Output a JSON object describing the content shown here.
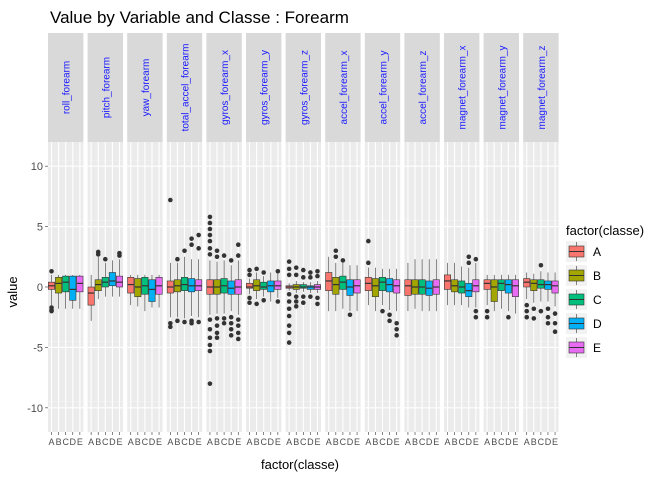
{
  "chart_data": {
    "type": "boxplot",
    "title": "Value by Variable and Classe : Forearm",
    "xlabel": "factor(classe)",
    "ylabel": "value",
    "ylim": [
      -12,
      12
    ],
    "yticks": [
      10,
      5,
      0,
      -5,
      -10
    ],
    "grid": true,
    "legend_position": "right",
    "legend": {
      "title": "factor(classe)",
      "entries": [
        {
          "name": "A",
          "color": "#F8766D"
        },
        {
          "name": "B",
          "color": "#A3A500"
        },
        {
          "name": "C",
          "color": "#00BF7D"
        },
        {
          "name": "D",
          "color": "#00B0F6"
        },
        {
          "name": "E",
          "color": "#E76BF3"
        }
      ]
    },
    "categories": [
      "A",
      "B",
      "C",
      "D",
      "E"
    ],
    "facets": [
      {
        "name": "roll_forearm",
        "boxes": [
          {
            "q1": -0.2,
            "median": 0.1,
            "q3": 0.4,
            "lo": -1.5,
            "hi": 1.0,
            "out": [
              1.3,
              -1.7,
              -1.9,
              -2.0
            ]
          },
          {
            "q1": -0.5,
            "median": 0.3,
            "q3": 0.8,
            "lo": -1.8,
            "hi": 1.0,
            "out": []
          },
          {
            "q1": -0.4,
            "median": 0.4,
            "q3": 0.9,
            "lo": -1.8,
            "hi": 1.0,
            "out": []
          },
          {
            "q1": -1.1,
            "median": -0.2,
            "q3": 0.9,
            "lo": -1.8,
            "hi": 1.0,
            "out": []
          },
          {
            "q1": -0.4,
            "median": 0.3,
            "q3": 0.9,
            "lo": -1.8,
            "hi": 1.0,
            "out": []
          }
        ]
      },
      {
        "name": "pitch_forearm",
        "boxes": [
          {
            "q1": -1.5,
            "median": -0.5,
            "q3": 0.0,
            "lo": -2.8,
            "hi": 1.0,
            "out": []
          },
          {
            "q1": -0.3,
            "median": 0.2,
            "q3": 0.6,
            "lo": -1.0,
            "hi": 2.5,
            "out": [
              2.7,
              2.9
            ]
          },
          {
            "q1": 0.0,
            "median": 0.4,
            "q3": 0.8,
            "lo": -0.8,
            "hi": 2.0,
            "out": [
              2.3
            ]
          },
          {
            "q1": 0.1,
            "median": 0.5,
            "q3": 1.2,
            "lo": -0.8,
            "hi": 2.2,
            "out": []
          },
          {
            "q1": 0.0,
            "median": 0.4,
            "q3": 0.9,
            "lo": -0.8,
            "hi": 2.3,
            "out": [
              2.6,
              2.8
            ]
          }
        ]
      },
      {
        "name": "yaw_forearm",
        "boxes": [
          {
            "q1": -0.5,
            "median": 0.2,
            "q3": 0.8,
            "lo": -1.5,
            "hi": 1.0,
            "out": []
          },
          {
            "q1": -0.8,
            "median": 0.0,
            "q3": 0.7,
            "lo": -1.6,
            "hi": 1.0,
            "out": []
          },
          {
            "q1": -0.6,
            "median": 0.1,
            "q3": 0.8,
            "lo": -2.0,
            "hi": 1.0,
            "out": []
          },
          {
            "q1": -1.2,
            "median": -0.2,
            "q3": 0.6,
            "lo": -1.7,
            "hi": 1.0,
            "out": []
          },
          {
            "q1": -0.6,
            "median": 0.1,
            "q3": 0.8,
            "lo": -1.7,
            "hi": 1.0,
            "out": []
          }
        ]
      },
      {
        "name": "total_accel_forearm",
        "boxes": [
          {
            "q1": -0.5,
            "median": 0.0,
            "q3": 0.5,
            "lo": -2.5,
            "hi": 2.0,
            "out": [
              7.2,
              -3.0,
              -3.3
            ]
          },
          {
            "q1": -0.4,
            "median": 0.1,
            "q3": 0.6,
            "lo": -2.5,
            "hi": 2.0,
            "out": [
              2.3,
              -2.8
            ]
          },
          {
            "q1": -0.3,
            "median": 0.2,
            "q3": 0.8,
            "lo": -2.6,
            "hi": 2.5,
            "out": [
              3.0,
              -2.9
            ]
          },
          {
            "q1": -0.4,
            "median": 0.1,
            "q3": 0.7,
            "lo": -2.4,
            "hi": 2.3,
            "out": [
              3.5,
              4.0,
              -2.8,
              -3.0
            ]
          },
          {
            "q1": -0.3,
            "median": 0.1,
            "q3": 0.6,
            "lo": -2.5,
            "hi": 2.3,
            "out": [
              3.2,
              4.3,
              -2.9
            ]
          }
        ]
      },
      {
        "name": "gyros_forearm_x",
        "boxes": [
          {
            "q1": -0.6,
            "median": 0.0,
            "q3": 0.6,
            "lo": -2.3,
            "hi": 2.2,
            "out": [
              2.7,
              3.2,
              3.8,
              4.3,
              4.8,
              5.3,
              5.8,
              -2.7,
              -3.5,
              -4.2,
              -4.8,
              -5.3,
              -8.0
            ]
          },
          {
            "q1": -0.6,
            "median": 0.0,
            "q3": 0.6,
            "lo": -2.2,
            "hi": 2.1,
            "out": [
              2.5,
              3.0,
              -2.6,
              -3.2,
              -3.8,
              -4.2
            ]
          },
          {
            "q1": -0.5,
            "median": 0.1,
            "q3": 0.7,
            "lo": -2.2,
            "hi": 2.2,
            "out": [
              2.6,
              -2.6,
              -3.0
            ]
          },
          {
            "q1": -0.6,
            "median": -0.1,
            "q3": 0.5,
            "lo": -2.0,
            "hi": 1.8,
            "out": [
              2.2,
              -2.5,
              -3.0,
              -3.5,
              -4.0
            ]
          },
          {
            "q1": -0.6,
            "median": 0.0,
            "q3": 0.6,
            "lo": -2.3,
            "hi": 2.2,
            "out": [
              2.6,
              3.5,
              -2.7,
              -3.2,
              -3.8,
              -4.3
            ]
          }
        ]
      },
      {
        "name": "gyros_forearm_y",
        "boxes": [
          {
            "q1": -0.1,
            "median": 0.0,
            "q3": 0.3,
            "lo": -0.6,
            "hi": 0.7,
            "out": [
              1.0,
              1.4,
              -0.9,
              -1.3
            ]
          },
          {
            "q1": -0.3,
            "median": 0.1,
            "q3": 0.6,
            "lo": -1.0,
            "hi": 1.2,
            "out": [
              1.5,
              -1.4
            ]
          },
          {
            "q1": -0.2,
            "median": 0.0,
            "q3": 0.4,
            "lo": -0.8,
            "hi": 0.9,
            "out": [
              1.2,
              -1.1
            ]
          },
          {
            "q1": -0.4,
            "median": 0.1,
            "q3": 0.5,
            "lo": -1.2,
            "hi": 1.2,
            "out": []
          },
          {
            "q1": -0.2,
            "median": 0.1,
            "q3": 0.5,
            "lo": -0.9,
            "hi": 1.1,
            "out": [
              1.3,
              -1.2
            ]
          }
        ]
      },
      {
        "name": "gyros_forearm_z",
        "boxes": [
          {
            "q1": -0.1,
            "median": 0.0,
            "q3": 0.1,
            "lo": -0.3,
            "hi": 0.3,
            "out": [
              1.0,
              1.5,
              2.1,
              -0.6,
              -1.2,
              -1.8,
              -2.4,
              -3.2,
              -3.8,
              -4.6
            ]
          },
          {
            "q1": -0.2,
            "median": 0.0,
            "q3": 0.2,
            "lo": -0.5,
            "hi": 0.5,
            "out": [
              1.0,
              1.6,
              -0.8,
              -1.2,
              -1.6
            ]
          },
          {
            "q1": -0.1,
            "median": 0.0,
            "q3": 0.2,
            "lo": -0.4,
            "hi": 0.4,
            "out": [
              0.8,
              1.4,
              -0.8,
              -1.3
            ]
          },
          {
            "q1": -0.2,
            "median": 0.0,
            "q3": 0.1,
            "lo": -0.5,
            "hi": 0.4,
            "out": [
              0.8,
              1.2,
              -0.8
            ]
          },
          {
            "q1": -0.2,
            "median": 0.0,
            "q3": 0.2,
            "lo": -0.5,
            "hi": 0.5,
            "out": [
              0.9,
              1.3,
              -0.9,
              -1.4
            ]
          }
        ]
      },
      {
        "name": "accel_forearm_x",
        "boxes": [
          {
            "q1": -0.3,
            "median": 0.5,
            "q3": 1.2,
            "lo": -2.0,
            "hi": 2.5,
            "out": []
          },
          {
            "q1": -0.6,
            "median": 0.2,
            "q3": 0.8,
            "lo": -2.0,
            "hi": 2.0,
            "out": [
              2.5,
              3.0
            ]
          },
          {
            "q1": -0.2,
            "median": 0.4,
            "q3": 0.9,
            "lo": -1.8,
            "hi": 2.0,
            "out": [
              2.2
            ]
          },
          {
            "q1": -0.7,
            "median": 0.0,
            "q3": 0.6,
            "lo": -2.0,
            "hi": 1.8,
            "out": [
              -2.3
            ]
          },
          {
            "q1": -0.5,
            "median": 0.1,
            "q3": 0.6,
            "lo": -2.0,
            "hi": 1.8,
            "out": []
          }
        ]
      },
      {
        "name": "accel_forearm_y",
        "boxes": [
          {
            "q1": -0.3,
            "median": 0.3,
            "q3": 0.8,
            "lo": -1.5,
            "hi": 1.6,
            "out": [
              2.0,
              3.8
            ]
          },
          {
            "q1": -0.8,
            "median": 0.1,
            "q3": 0.7,
            "lo": -2.0,
            "hi": 1.6,
            "out": []
          },
          {
            "q1": -0.3,
            "median": 0.4,
            "q3": 0.8,
            "lo": -1.5,
            "hi": 1.5,
            "out": [
              -2.0
            ]
          },
          {
            "q1": -0.4,
            "median": 0.2,
            "q3": 0.7,
            "lo": -1.9,
            "hi": 1.5,
            "out": [
              -2.3,
              -2.8
            ]
          },
          {
            "q1": -0.5,
            "median": 0.1,
            "q3": 0.6,
            "lo": -2.0,
            "hi": 1.5,
            "out": [
              -3.0,
              -3.5,
              -4.0
            ]
          }
        ]
      },
      {
        "name": "accel_forearm_z",
        "boxes": [
          {
            "q1": -0.7,
            "median": 0.1,
            "q3": 0.6,
            "lo": -2.0,
            "hi": 2.0,
            "out": []
          },
          {
            "q1": -0.6,
            "median": 0.0,
            "q3": 0.6,
            "lo": -1.8,
            "hi": 2.3,
            "out": []
          },
          {
            "q1": -0.6,
            "median": 0.0,
            "q3": 0.6,
            "lo": -2.0,
            "hi": 2.3,
            "out": []
          },
          {
            "q1": -0.7,
            "median": -0.1,
            "q3": 0.5,
            "lo": -2.0,
            "hi": 2.3,
            "out": []
          },
          {
            "q1": -0.6,
            "median": 0.0,
            "q3": 0.6,
            "lo": -2.0,
            "hi": 2.3,
            "out": []
          }
        ]
      },
      {
        "name": "magnet_forearm_x",
        "boxes": [
          {
            "q1": -0.2,
            "median": 0.5,
            "q3": 1.0,
            "lo": -1.5,
            "hi": 2.0,
            "out": []
          },
          {
            "q1": -0.4,
            "median": 0.1,
            "q3": 0.6,
            "lo": -1.5,
            "hi": 2.0,
            "out": []
          },
          {
            "q1": -0.5,
            "median": 0.0,
            "q3": 0.5,
            "lo": -1.5,
            "hi": 1.7,
            "out": []
          },
          {
            "q1": -0.8,
            "median": -0.3,
            "q3": 0.3,
            "lo": -1.7,
            "hi": 1.6,
            "out": [
              2.0,
              2.5
            ]
          },
          {
            "q1": -0.4,
            "median": 0.1,
            "q3": 0.6,
            "lo": -1.7,
            "hi": 2.0,
            "out": [
              2.3,
              -2.0,
              -2.5
            ]
          }
        ]
      },
      {
        "name": "magnet_forearm_y",
        "boxes": [
          {
            "q1": -0.2,
            "median": 0.3,
            "q3": 0.6,
            "lo": -1.5,
            "hi": 1.0,
            "out": [
              -2.0,
              -2.5
            ]
          },
          {
            "q1": -1.2,
            "median": 0.0,
            "q3": 0.6,
            "lo": -2.0,
            "hi": 1.0,
            "out": []
          },
          {
            "q1": -0.3,
            "median": 0.3,
            "q3": 0.6,
            "lo": -1.8,
            "hi": 1.0,
            "out": []
          },
          {
            "q1": -0.5,
            "median": 0.2,
            "q3": 0.6,
            "lo": -2.0,
            "hi": 1.0,
            "out": [
              -2.5
            ]
          },
          {
            "q1": -0.8,
            "median": 0.1,
            "q3": 0.6,
            "lo": -2.2,
            "hi": 1.0,
            "out": []
          }
        ]
      },
      {
        "name": "magnet_forearm_z",
        "boxes": [
          {
            "q1": 0.0,
            "median": 0.4,
            "q3": 0.7,
            "lo": -1.0,
            "hi": 1.2,
            "out": [
              -1.5,
              -2.0,
              -2.5
            ]
          },
          {
            "q1": -0.3,
            "median": 0.3,
            "q3": 0.6,
            "lo": -1.3,
            "hi": 1.1,
            "out": [
              -1.8,
              -2.6
            ]
          },
          {
            "q1": -0.1,
            "median": 0.2,
            "q3": 0.6,
            "lo": -1.2,
            "hi": 1.3,
            "out": [
              1.8,
              -2.0
            ]
          },
          {
            "q1": -0.2,
            "median": 0.2,
            "q3": 0.5,
            "lo": -1.2,
            "hi": 1.2,
            "out": [
              -1.8,
              -2.5,
              -3.0
            ]
          },
          {
            "q1": -0.5,
            "median": 0.1,
            "q3": 0.5,
            "lo": -1.6,
            "hi": 1.2,
            "out": [
              -2.2,
              -3.0,
              -3.7
            ]
          }
        ]
      }
    ]
  }
}
